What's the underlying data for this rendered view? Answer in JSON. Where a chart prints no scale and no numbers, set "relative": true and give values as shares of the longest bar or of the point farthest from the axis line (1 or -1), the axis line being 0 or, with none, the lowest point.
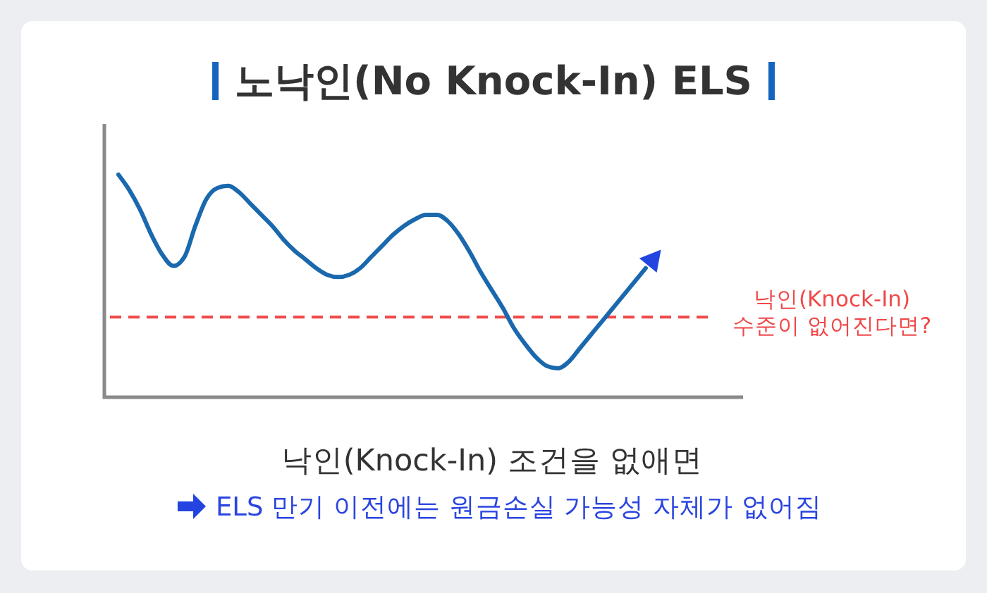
{
  "chart_data": {
    "type": "line",
    "relative": true,
    "title": "노낙인(No Knock-In) ELS",
    "categories": [
      null,
      null,
      null,
      null,
      null,
      null,
      null,
      null,
      null,
      null,
      null,
      null,
      null,
      null,
      null,
      null,
      null,
      null,
      null,
      null,
      null,
      null,
      null,
      null,
      null,
      null,
      null,
      null,
      null,
      null,
      null,
      null,
      null,
      null,
      null,
      null,
      null,
      null,
      null,
      null,
      null,
      null,
      null,
      null,
      null,
      null,
      null,
      null,
      null
    ],
    "series": [
      {
        "color": "#1a68ad",
        "values": [
          1,
          0.93,
          0.84,
          0.73,
          0.64,
          0.59,
          0.63,
          0.77,
          0.89,
          0.94,
          0.95,
          0.92,
          0.87,
          0.82,
          0.77,
          0.71,
          0.66,
          0.62,
          0.58,
          0.55,
          0.54,
          0.55,
          0.58,
          0.63,
          0.68,
          0.73,
          0.77,
          0.8,
          0.82,
          0.82,
          0.79,
          0.73,
          0.65,
          0.56,
          0.48,
          0.4,
          0.31,
          0.24,
          0.18,
          0.14,
          0.13,
          0.16,
          0.22,
          0.28,
          0.34,
          0.4,
          0.46,
          0.52,
          0.58
        ]
      }
    ],
    "ref_lines": [
      {
        "axis": "y",
        "value": 0.36,
        "label": "낙인(Knock-In)\n수준이 없어진다면?",
        "color": "#f04848",
        "line_style": "dashed"
      }
    ],
    "annotations": [
      "낙인(Knock-In) 조건을 없애면",
      "ELS 만기 이전에는 원금손실 가능성 자체가 없어짐"
    ]
  }
}
